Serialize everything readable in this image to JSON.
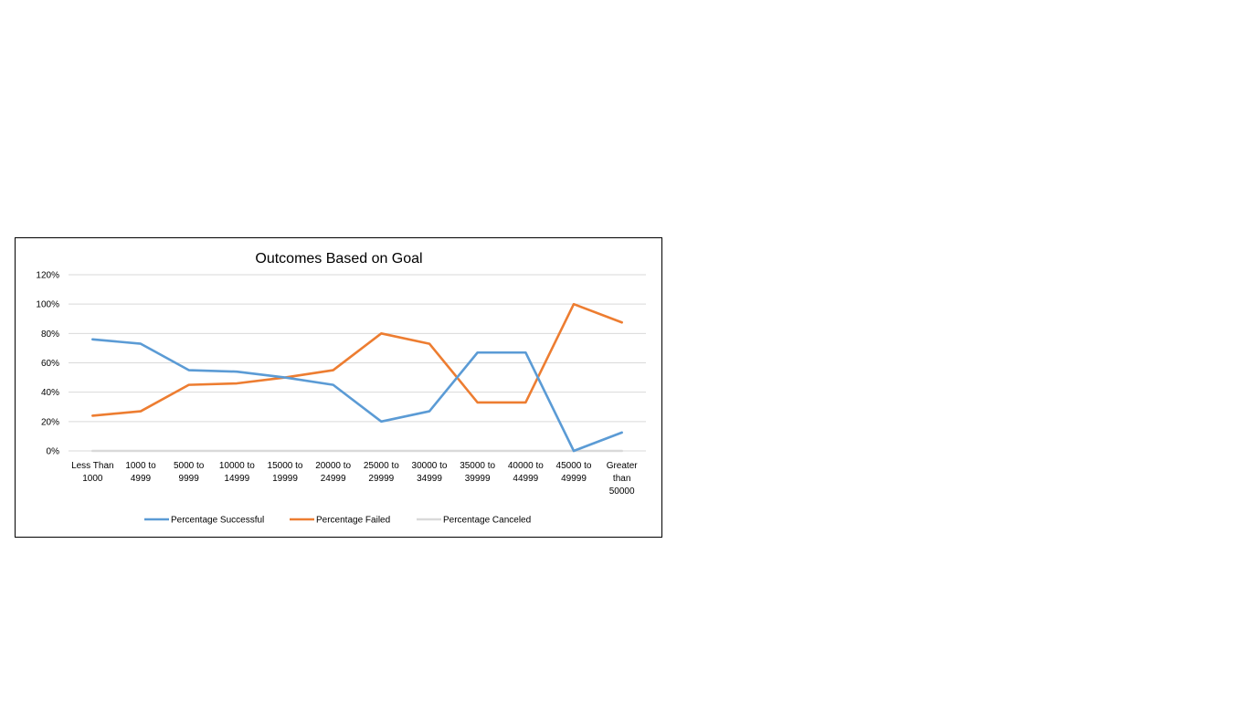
{
  "chart_data": {
    "type": "line",
    "title": "Outcomes Based on Goal",
    "xlabel": "",
    "ylabel": "",
    "categories": [
      [
        "Less Than",
        "1000"
      ],
      [
        "1000 to",
        "4999"
      ],
      [
        "5000 to",
        "9999"
      ],
      [
        "10000 to",
        "14999"
      ],
      [
        "15000 to",
        "19999"
      ],
      [
        "20000 to",
        "24999"
      ],
      [
        "25000 to",
        "29999"
      ],
      [
        "30000 to",
        "34999"
      ],
      [
        "35000 to",
        "39999"
      ],
      [
        "40000 to",
        "44999"
      ],
      [
        "45000 to",
        "49999"
      ],
      [
        "Greater",
        "than",
        "50000"
      ]
    ],
    "ylim": [
      0,
      120
    ],
    "yticks": [
      0,
      20,
      40,
      60,
      80,
      100,
      120
    ],
    "ytick_labels": [
      "0%",
      "20%",
      "40%",
      "60%",
      "80%",
      "100%",
      "120%"
    ],
    "grid": true,
    "legend_position": "bottom",
    "series": [
      {
        "name": "Percentage Successful",
        "color": "#5B9BD5",
        "values": [
          76,
          73,
          55,
          54,
          50,
          45,
          20,
          27,
          67,
          67,
          0,
          12.5
        ]
      },
      {
        "name": "Percentage Failed",
        "color": "#ED7D31",
        "values": [
          24,
          27,
          45,
          46,
          50,
          55,
          80,
          73,
          33,
          33,
          100,
          87.5
        ]
      },
      {
        "name": "Percentage Canceled",
        "color": "#D9D9D9",
        "values": [
          0,
          0,
          0,
          0,
          0,
          0,
          0,
          0,
          0,
          0,
          0,
          0
        ]
      }
    ]
  }
}
